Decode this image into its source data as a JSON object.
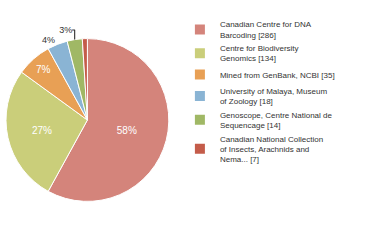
{
  "chart_data": {
    "type": "pie",
    "categories": [
      "Canadian Centre for DNA\nBarcoding [286]",
      "Centre for Biodiversity\nGenomics [134]",
      "Mined from GenBank, NCBI [35]",
      "University of Malaya, Museum\nof Zoology [18]",
      "Genoscope, Centre National de\nSequencage [14]",
      "Canadian National Collection\nof Insects, Arachnids and\nNema... [7]"
    ],
    "values": [
      58,
      27,
      7,
      4,
      3,
      1
    ],
    "value_labels": [
      "58%",
      "27%",
      "7%",
      "4%",
      "3%",
      null
    ],
    "data_labels": true,
    "colors": [
      "#d4847b",
      "#cace7a",
      "#e8a055",
      "#8ab4d4",
      "#a0b865",
      "#c45c4a"
    ],
    "legend": "right"
  }
}
